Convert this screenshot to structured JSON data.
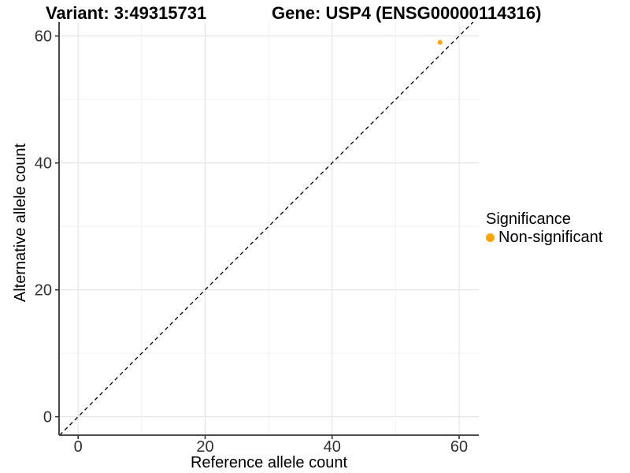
{
  "header": {
    "variant_title": "Variant: 3:49315731",
    "gene_title": "Gene: USP4 (ENSG00000114316)"
  },
  "legend": {
    "title": "Significance",
    "items": [
      {
        "label": "Non-significant",
        "color": "#FFA500",
        "shape": "circle"
      }
    ]
  },
  "colors": {
    "point_orange": "#FFA500",
    "axis_line": "#333333",
    "tick_text": "#303030",
    "grid_major": "#e3e3e3",
    "grid_minor": "#f0f0f0",
    "reference_line": "#000000",
    "background": "#ffffff"
  },
  "chart_data": {
    "type": "scatter",
    "title": "",
    "xlabel": "Reference allele count",
    "ylabel": "Alternative allele count",
    "xlim": [
      -3,
      63.1
    ],
    "ylim": [
      -2.9,
      62.2
    ],
    "xticks": [
      0,
      20,
      40,
      60
    ],
    "yticks": [
      0,
      20,
      40,
      60
    ],
    "minor_grid_step": 10,
    "grid": true,
    "legend_position": "right",
    "series": [
      {
        "name": "Non-significant",
        "color": "#FFA500",
        "points": [
          {
            "x": 57,
            "y": 59
          }
        ]
      }
    ],
    "reference_line": {
      "slope": 1,
      "intercept": 0,
      "style": "dashed",
      "color": "#000000"
    }
  }
}
